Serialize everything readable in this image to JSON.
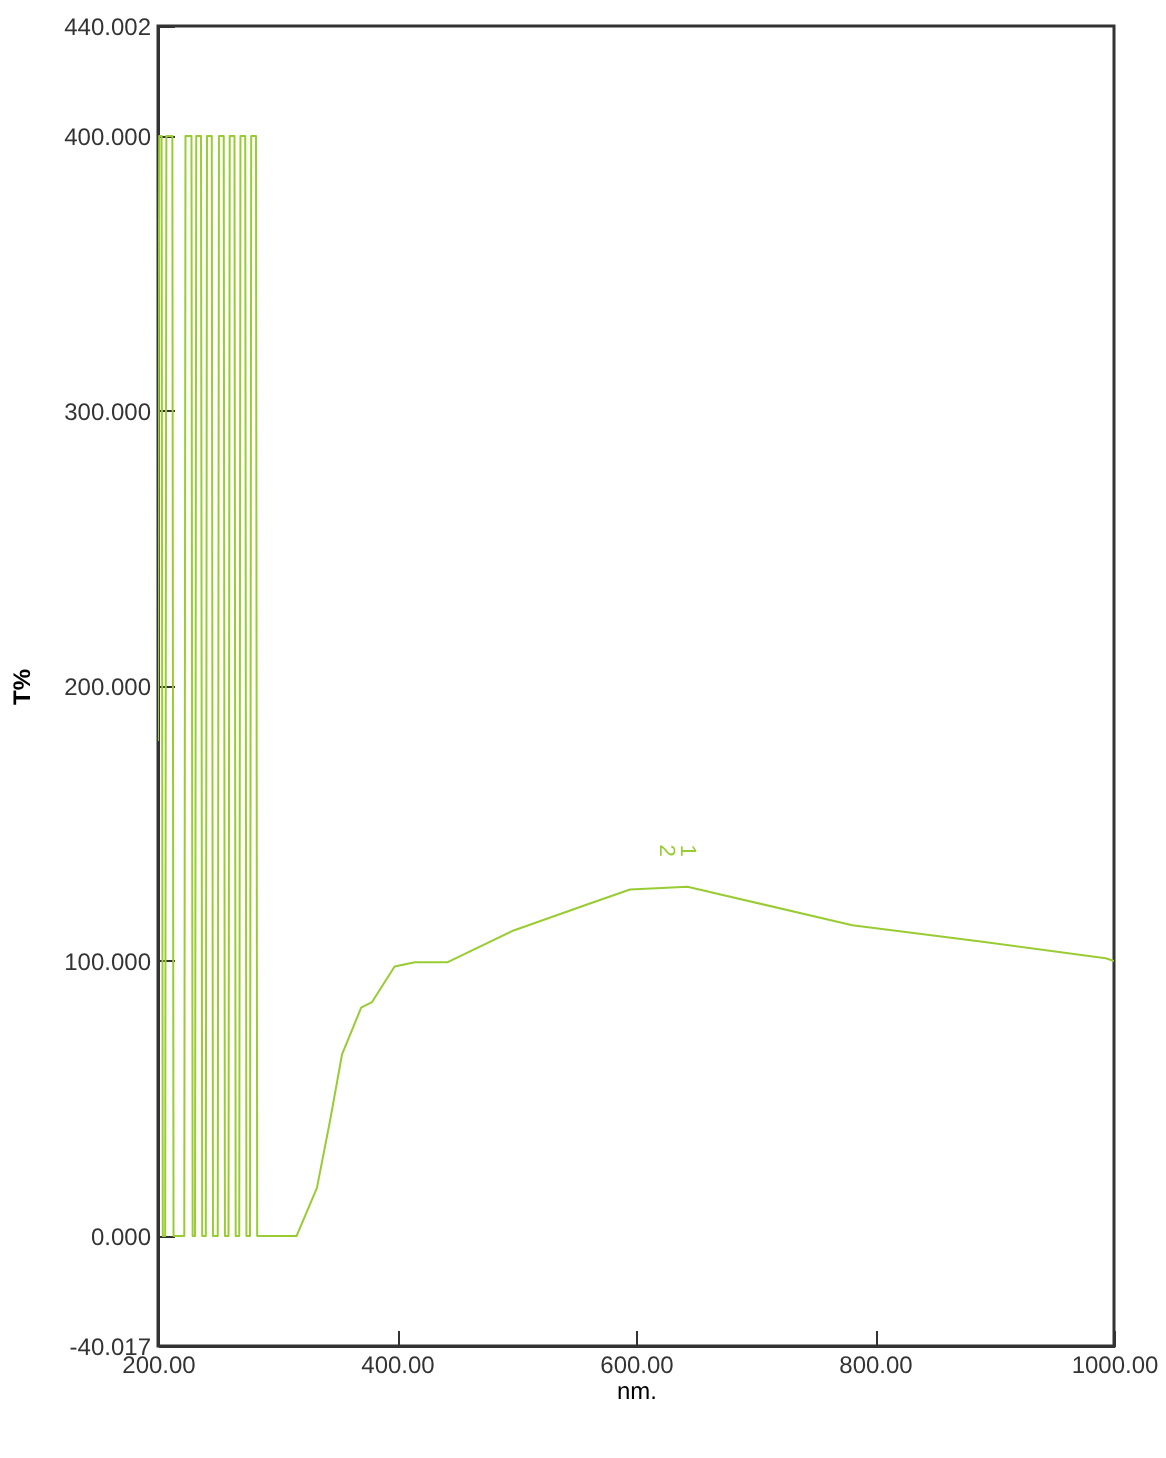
{
  "chart_data": {
    "type": "line",
    "xlabel": "nm.",
    "ylabel": "T%",
    "xlim": [
      200,
      1000
    ],
    "xticks": [
      {
        "value": 200,
        "label": "200.00"
      },
      {
        "value": 400,
        "label": "400.00"
      },
      {
        "value": 600,
        "label": "600.00"
      },
      {
        "value": 800,
        "label": "800.00"
      },
      {
        "value": 1000,
        "label": "1000.00"
      }
    ],
    "ylim": [
      -40.017,
      440.002
    ],
    "yticks": [
      {
        "value": -40.017,
        "label": "-40.017"
      },
      {
        "value": 0,
        "label": "0.000"
      },
      {
        "value": 100,
        "label": "100.000"
      },
      {
        "value": 200,
        "label": "200.000"
      },
      {
        "value": 300,
        "label": "300.000"
      },
      {
        "value": 400,
        "label": "400.000"
      },
      {
        "value": 440.002,
        "label": "440.002"
      }
    ],
    "grid": false,
    "marker": "none",
    "line_style": "solid",
    "x": [
      200,
      201,
      203,
      204,
      206,
      207,
      212,
      213,
      222,
      223,
      228,
      229,
      231,
      232,
      236,
      237,
      240,
      241,
      245,
      246,
      250,
      251,
      255,
      256,
      259,
      260,
      264,
      265,
      268,
      269,
      273,
      274,
      277,
      278,
      282,
      283,
      286,
      287,
      316,
      333,
      344,
      354,
      370,
      379,
      398,
      415,
      442,
      497,
      562,
      595,
      643,
      781,
      890,
      993,
      1000
    ],
    "series": [
      {
        "color": "#99cc33",
        "values": [
          180,
          400,
          400,
          0,
          0,
          400,
          400,
          0,
          0,
          400,
          400,
          0,
          0,
          400,
          400,
          0,
          0,
          400,
          400,
          0,
          0,
          400,
          400,
          0,
          0,
          400,
          400,
          0,
          0,
          400,
          400,
          0,
          0,
          400,
          400,
          0,
          0,
          0,
          0,
          17.5,
          42,
          66,
          83,
          85,
          98,
          99.5,
          99.5,
          111,
          121,
          126,
          127,
          113,
          107,
          101,
          100
        ]
      }
    ],
    "annotations": [
      {
        "text": "2",
        "x": 625,
        "y": 127
      },
      {
        "text": "1",
        "x": 643,
        "y": 127
      }
    ]
  }
}
